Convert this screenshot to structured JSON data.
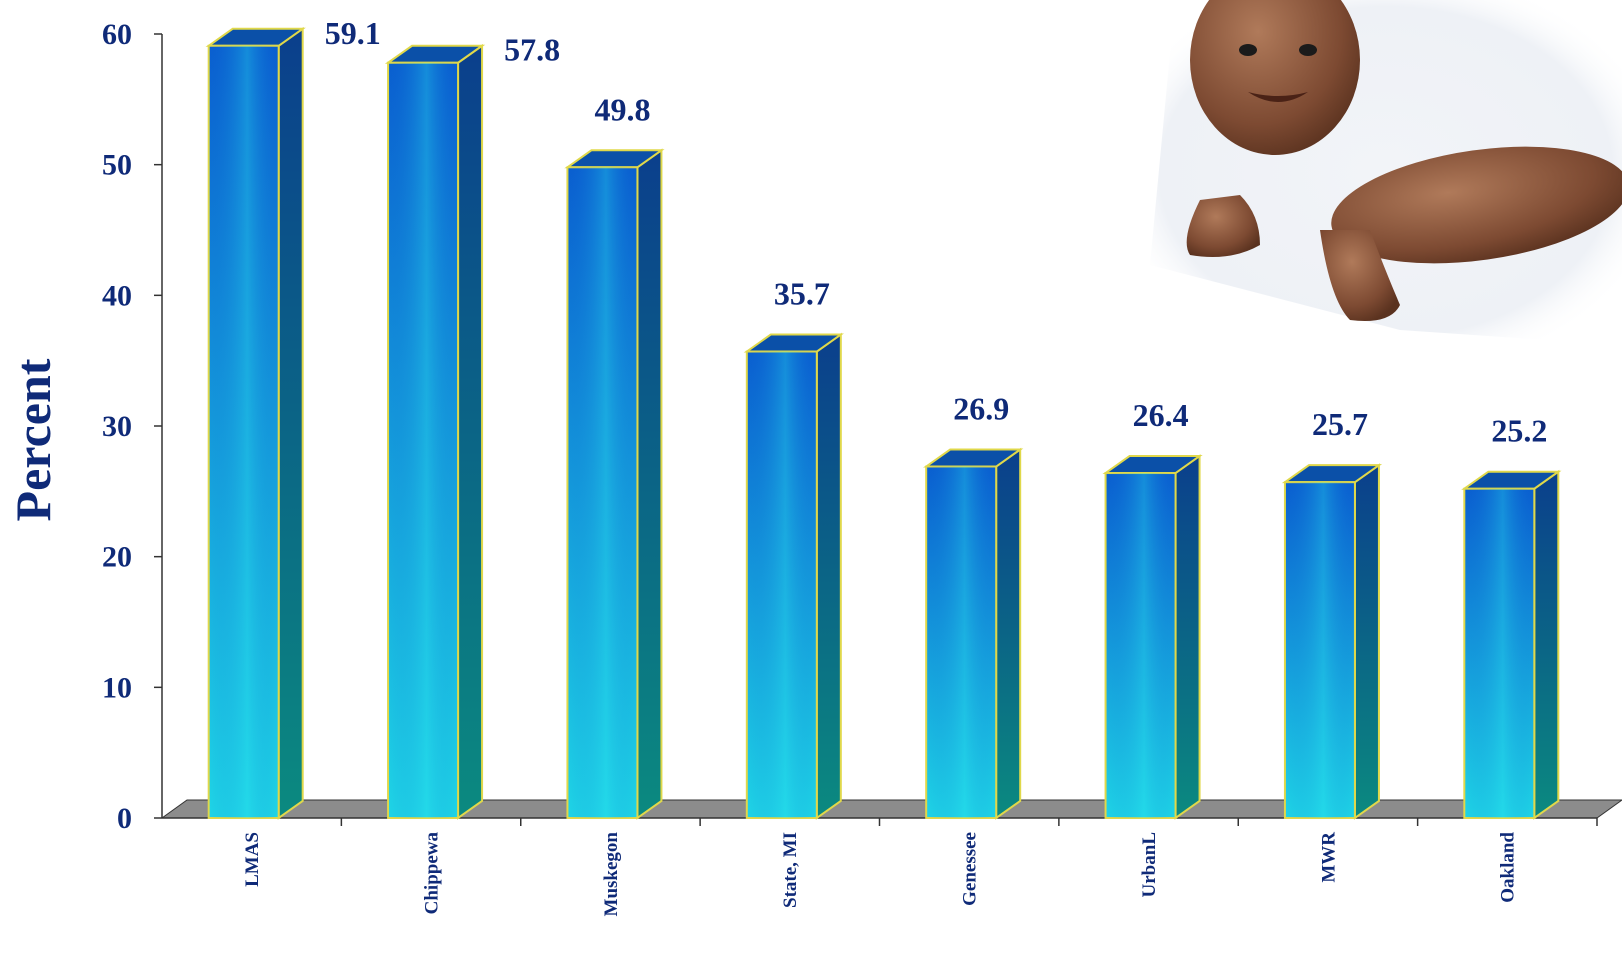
{
  "chart_data": {
    "type": "bar",
    "title": "",
    "xlabel": "",
    "ylabel": "Percent",
    "ylim": [
      0,
      60
    ],
    "yticks": [
      0,
      10,
      20,
      30,
      40,
      50,
      60
    ],
    "categories": [
      "LMAS",
      "Chippewa",
      "Muskegon",
      "State, MI",
      "Genessee",
      "UrbanL",
      "MWR",
      "Oakland"
    ],
    "values": [
      59.1,
      57.8,
      49.8,
      35.7,
      26.9,
      26.4,
      25.7,
      25.2
    ],
    "value_labels": [
      "59.1",
      "57.8",
      "49.8",
      "35.7",
      "26.9",
      "26.4",
      "25.7",
      "25.2"
    ],
    "grid": false,
    "legend": "none",
    "style": "3d-columns",
    "colors": {
      "bar_front_top": "#0a5fd0",
      "bar_front_mid": "#1fd6e6",
      "bar_side": "#0a5a78",
      "bar_top": "#0b50a8",
      "bar_outline": "#e0d84a",
      "floor": "#8c8c8c",
      "text": "#0f2a78"
    },
    "image": {
      "icon": "baby-photo",
      "description_shown": false
    }
  }
}
